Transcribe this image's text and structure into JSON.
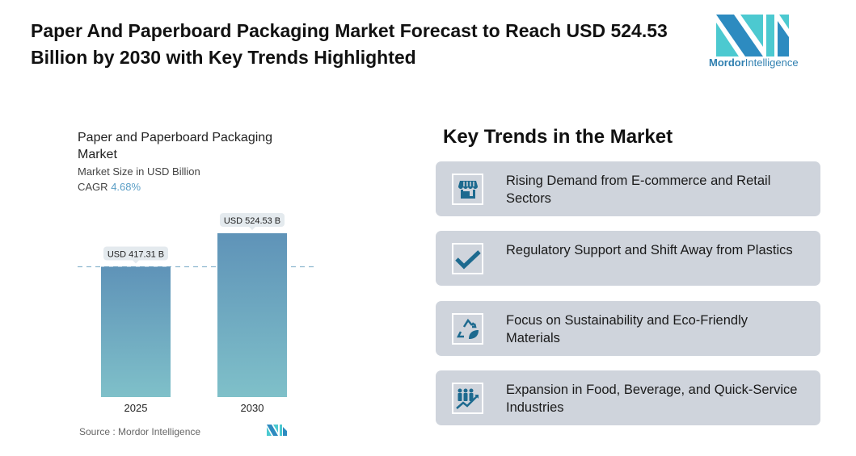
{
  "header": {
    "title": "Paper And Paperboard Packaging Market Forecast to Reach USD 524.53 Billion by 2030 with Key Trends Highlighted",
    "logo_text_1": "Mordor",
    "logo_text_2": "Intelligence"
  },
  "chart_data": {
    "type": "bar",
    "title": "Paper and Paperboard Packaging Market",
    "subtitle": "Market Size in USD Billion",
    "cagr_label": "CAGR",
    "cagr_value": "4.68%",
    "categories": [
      "2025",
      "2030"
    ],
    "values": [
      417.31,
      524.53
    ],
    "data_labels": [
      "USD 417.31 B",
      "USD 524.53 B"
    ],
    "ylim": [
      0,
      1270
    ],
    "grid": false,
    "reference_line": "dashed at 2025 value",
    "colors": {
      "bar_top": "#5f93b8",
      "bar_bottom": "#7fc0c9",
      "cagr": "#5a9ec6"
    },
    "source": "Source :  Mordor Intelligence"
  },
  "trends": {
    "title": "Key Trends in the Market",
    "icon_color": "#1d6a8f",
    "items": [
      {
        "icon": "storefront-icon",
        "text": "Rising Demand from E-commerce and Retail Sectors"
      },
      {
        "icon": "checkmark-icon",
        "text": "Regulatory Support and Shift Away from Plastics"
      },
      {
        "icon": "recycle-leaf-icon",
        "text": "Focus on Sustainability and Eco-Friendly Materials"
      },
      {
        "icon": "people-growth-icon",
        "text": "Expansion in Food, Beverage, and Quick-Service Industries"
      }
    ]
  }
}
